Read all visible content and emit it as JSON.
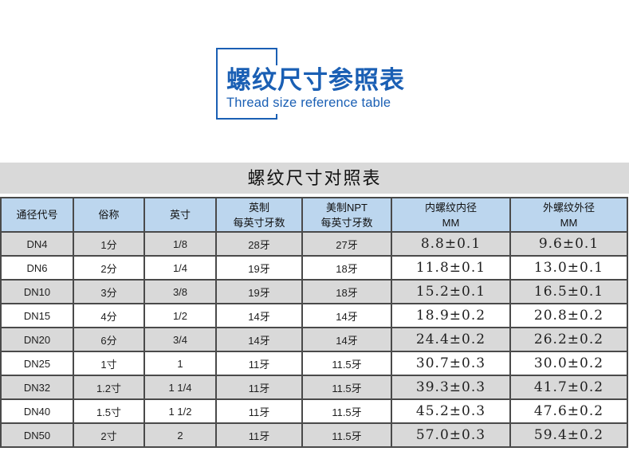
{
  "header": {
    "title": "螺纹尺寸参照表",
    "subtitle": "Thread size reference table",
    "accent_color": "#1a5fb4"
  },
  "table": {
    "title": "螺纹尺寸对照表",
    "colors": {
      "header_bg": "#bcd6ee",
      "alt_row_bg": "#d9d9d9",
      "title_bg": "#d9d9d9",
      "border": "#4a4a4a"
    },
    "columns": [
      {
        "lines": [
          "通径代号"
        ]
      },
      {
        "lines": [
          "俗称"
        ]
      },
      {
        "lines": [
          "英寸"
        ]
      },
      {
        "lines": [
          "英制",
          "每英寸牙数"
        ]
      },
      {
        "lines": [
          "美制NPT",
          "每英寸牙数"
        ]
      },
      {
        "lines": [
          "内螺纹内径",
          "MM"
        ]
      },
      {
        "lines": [
          "外螺纹外径",
          "MM"
        ]
      }
    ],
    "rows": [
      [
        "DN4",
        "1分",
        "1/8",
        "28牙",
        "27牙",
        "8.8±0.1",
        "9.6±0.1"
      ],
      [
        "DN6",
        "2分",
        "1/4",
        "19牙",
        "18牙",
        "11.8±0.1",
        "13.0±0.1"
      ],
      [
        "DN10",
        "3分",
        "3/8",
        "19牙",
        "18牙",
        "15.2±0.1",
        "16.5±0.1"
      ],
      [
        "DN15",
        "4分",
        "1/2",
        "14牙",
        "14牙",
        "18.9±0.2",
        "20.8±0.2"
      ],
      [
        "DN20",
        "6分",
        "3/4",
        "14牙",
        "14牙",
        "24.4±0.2",
        "26.2±0.2"
      ],
      [
        "DN25",
        "1寸",
        "1",
        "11牙",
        "11.5牙",
        "30.7±0.3",
        "30.0±0.2"
      ],
      [
        "DN32",
        "1.2寸",
        "1 1/4",
        "11牙",
        "11.5牙",
        "39.3±0.3",
        "41.7±0.2"
      ],
      [
        "DN40",
        "1.5寸",
        "1 1/2",
        "11牙",
        "11.5牙",
        "45.2±0.3",
        "47.6±0.2"
      ],
      [
        "DN50",
        "2寸",
        "2",
        "11牙",
        "11.5牙",
        "57.0±0.3",
        "59.4±0.2"
      ]
    ]
  }
}
